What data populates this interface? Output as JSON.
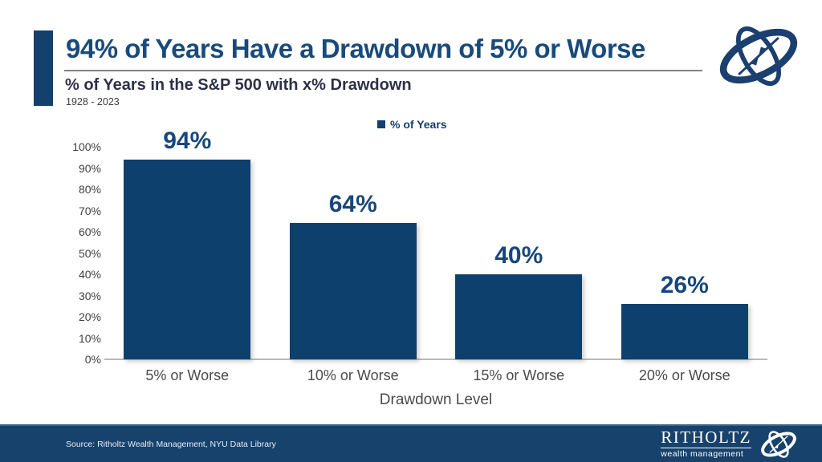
{
  "header": {
    "title": "94% of Years Have a Drawdown of 5% or Worse",
    "subtitle": "% of Years in the S&P 500 with x% Drawdown",
    "period": "1928 - 2023"
  },
  "legend": {
    "label": "% of Years"
  },
  "chart_data": {
    "type": "bar",
    "title": "% of Years in the S&P 500 with x% Drawdown",
    "subtitle_period": "1928 - 2023",
    "categories": [
      "5% or Worse",
      "10% or Worse",
      "15% or Worse",
      "20% or Worse"
    ],
    "series": [
      {
        "name": "% of Years",
        "values": [
          94,
          64,
          40,
          26
        ],
        "data_labels": [
          "94%",
          "64%",
          "40%",
          "26%"
        ]
      }
    ],
    "xlabel": "Drawdown Level",
    "ylabel": "",
    "ylim": [
      0,
      100
    ],
    "ytick_labels": [
      "0%",
      "10%",
      "20%",
      "30%",
      "40%",
      "50%",
      "60%",
      "70%",
      "80%",
      "90%",
      "100%"
    ],
    "grid": false,
    "legend_position": "top-center",
    "bar_color": "#0e406d"
  },
  "colors": {
    "brand_navy": "#13406d",
    "title_text": "#194a7a",
    "subtitle_text": "#2e3049",
    "axis_text": "#4a4a4a",
    "footer_background": "#17426b"
  },
  "footer": {
    "source": "Source: Ritholtz Wealth Management, NYU Data Library",
    "brand_name": "RITHOLTZ",
    "brand_subtitle": "wealth management"
  },
  "icons": {
    "corner_logo": "gyroscope-compass-logo",
    "footer_logo": "gyroscope-compass-logo"
  }
}
